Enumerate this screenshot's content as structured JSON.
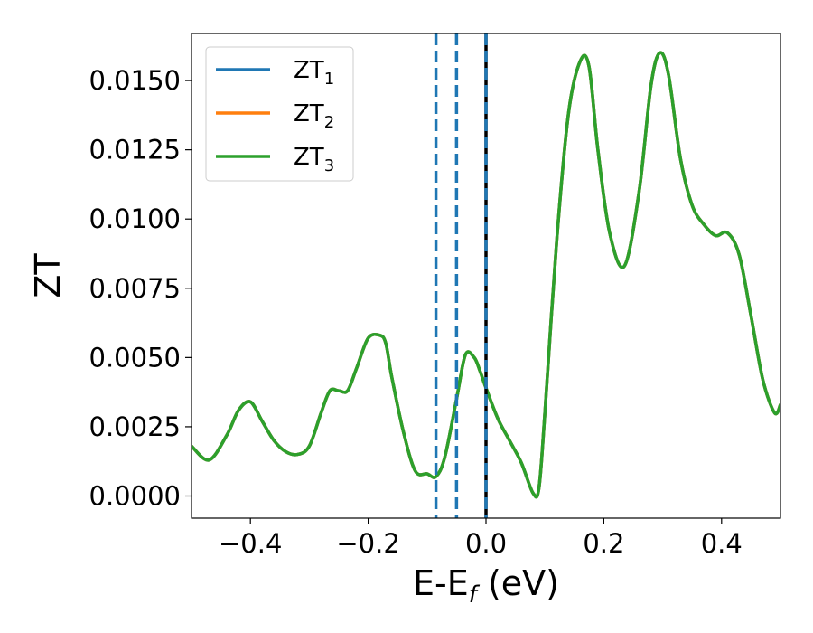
{
  "chart_data": {
    "type": "line",
    "title": "",
    "xlabel": "E-E",
    "xlabel_sub": "f",
    "xlabel_unit": " (eV)",
    "ylabel": "ZT",
    "xlim": [
      -0.5,
      0.5
    ],
    "ylim": [
      -0.0008,
      0.0167
    ],
    "grid": false,
    "legend_position": "top-left",
    "x_ticks": [
      -0.4,
      -0.2,
      0.0,
      0.2,
      0.4
    ],
    "x_tick_labels": [
      "−0.4",
      "−0.2",
      "0.0",
      "0.2",
      "0.4"
    ],
    "y_ticks": [
      0.0,
      0.0025,
      0.005,
      0.0075,
      0.01,
      0.0125,
      0.015
    ],
    "y_tick_labels": [
      "0.0000",
      "0.0025",
      "0.0050",
      "0.0075",
      "0.0100",
      "0.0125",
      "0.0150"
    ],
    "series": [
      {
        "name": "ZT",
        "name_sub": "1",
        "color": "#1f77b4",
        "x": [
          -0.5,
          -0.47,
          -0.44,
          -0.42,
          -0.4,
          -0.38,
          -0.36,
          -0.34,
          -0.32,
          -0.3,
          -0.28,
          -0.265,
          -0.25,
          -0.235,
          -0.22,
          -0.2,
          -0.18,
          -0.17,
          -0.16,
          -0.14,
          -0.12,
          -0.1,
          -0.085,
          -0.07,
          -0.05,
          -0.035,
          -0.02,
          -0.01,
          0.0,
          0.02,
          0.04,
          0.06,
          0.08,
          0.09,
          0.1,
          0.12,
          0.14,
          0.16,
          0.175,
          0.19,
          0.21,
          0.235,
          0.26,
          0.28,
          0.295,
          0.31,
          0.33,
          0.35,
          0.37,
          0.39,
          0.41,
          0.43,
          0.45,
          0.47,
          0.49,
          0.5
        ],
        "y": [
          0.0018,
          0.0013,
          0.0022,
          0.0031,
          0.0034,
          0.0027,
          0.002,
          0.0016,
          0.0015,
          0.0018,
          0.003,
          0.0038,
          0.0038,
          0.0038,
          0.0046,
          0.0057,
          0.0058,
          0.0055,
          0.0043,
          0.0023,
          0.0009,
          0.0008,
          0.0007,
          0.0014,
          0.0035,
          0.0051,
          0.005,
          0.0045,
          0.0039,
          0.0028,
          0.002,
          0.0012,
          0.0001,
          0.0003,
          0.003,
          0.0092,
          0.0138,
          0.0157,
          0.0155,
          0.0125,
          0.0095,
          0.0083,
          0.011,
          0.0148,
          0.016,
          0.0152,
          0.0122,
          0.0105,
          0.0098,
          0.0094,
          0.0095,
          0.0087,
          0.0065,
          0.0042,
          0.003,
          0.0033
        ]
      },
      {
        "name": "ZT",
        "name_sub": "2",
        "color": "#ff7f0e",
        "x": [
          -0.5,
          -0.47,
          -0.44,
          -0.42,
          -0.4,
          -0.38,
          -0.36,
          -0.34,
          -0.32,
          -0.3,
          -0.28,
          -0.265,
          -0.25,
          -0.235,
          -0.22,
          -0.2,
          -0.18,
          -0.17,
          -0.16,
          -0.14,
          -0.12,
          -0.1,
          -0.085,
          -0.07,
          -0.05,
          -0.035,
          -0.02,
          -0.01,
          0.0,
          0.02,
          0.04,
          0.06,
          0.08,
          0.09,
          0.1,
          0.12,
          0.14,
          0.16,
          0.175,
          0.19,
          0.21,
          0.235,
          0.26,
          0.28,
          0.295,
          0.31,
          0.33,
          0.35,
          0.37,
          0.39,
          0.41,
          0.43,
          0.45,
          0.47,
          0.49,
          0.5
        ],
        "y": [
          0.0018,
          0.0013,
          0.0022,
          0.0031,
          0.0034,
          0.0027,
          0.002,
          0.0016,
          0.0015,
          0.0018,
          0.003,
          0.0038,
          0.0038,
          0.0038,
          0.0046,
          0.0057,
          0.0058,
          0.0055,
          0.0043,
          0.0023,
          0.0009,
          0.0008,
          0.0007,
          0.0014,
          0.0035,
          0.0051,
          0.005,
          0.0045,
          0.0039,
          0.0028,
          0.002,
          0.0012,
          0.0001,
          0.0003,
          0.003,
          0.0092,
          0.0138,
          0.0157,
          0.0155,
          0.0125,
          0.0095,
          0.0083,
          0.011,
          0.0148,
          0.016,
          0.0152,
          0.0122,
          0.0105,
          0.0098,
          0.0094,
          0.0095,
          0.0087,
          0.0065,
          0.0042,
          0.003,
          0.0033
        ]
      },
      {
        "name": "ZT",
        "name_sub": "3",
        "color": "#2ca02c",
        "x": [
          -0.5,
          -0.47,
          -0.44,
          -0.42,
          -0.4,
          -0.38,
          -0.36,
          -0.34,
          -0.32,
          -0.3,
          -0.28,
          -0.265,
          -0.25,
          -0.235,
          -0.22,
          -0.2,
          -0.18,
          -0.17,
          -0.16,
          -0.14,
          -0.12,
          -0.1,
          -0.085,
          -0.07,
          -0.05,
          -0.035,
          -0.02,
          -0.01,
          0.0,
          0.02,
          0.04,
          0.06,
          0.08,
          0.09,
          0.1,
          0.12,
          0.14,
          0.16,
          0.175,
          0.19,
          0.21,
          0.235,
          0.26,
          0.28,
          0.295,
          0.31,
          0.33,
          0.35,
          0.37,
          0.39,
          0.41,
          0.43,
          0.45,
          0.47,
          0.49,
          0.5
        ],
        "y": [
          0.0018,
          0.0013,
          0.0022,
          0.0031,
          0.0034,
          0.0027,
          0.002,
          0.0016,
          0.0015,
          0.0018,
          0.003,
          0.0038,
          0.0038,
          0.0038,
          0.0046,
          0.0057,
          0.0058,
          0.0055,
          0.0043,
          0.0023,
          0.0009,
          0.0008,
          0.0007,
          0.0014,
          0.0035,
          0.0051,
          0.005,
          0.0045,
          0.0039,
          0.0028,
          0.002,
          0.0012,
          0.0001,
          0.0003,
          0.003,
          0.0092,
          0.0138,
          0.0157,
          0.0155,
          0.0125,
          0.0095,
          0.0083,
          0.011,
          0.0148,
          0.016,
          0.0152,
          0.0122,
          0.0105,
          0.0098,
          0.0094,
          0.0095,
          0.0087,
          0.0065,
          0.0042,
          0.003,
          0.0033
        ]
      }
    ],
    "vertical_lines": [
      {
        "x": -0.085,
        "style": "dashed",
        "color": "#1f77b4"
      },
      {
        "x": -0.05,
        "style": "dashed",
        "color": "#1f77b4"
      },
      {
        "x": 0.0,
        "style": "solid",
        "color": "#000000"
      },
      {
        "x": 0.0,
        "style": "dashed",
        "color": "#1f77b4"
      }
    ]
  }
}
